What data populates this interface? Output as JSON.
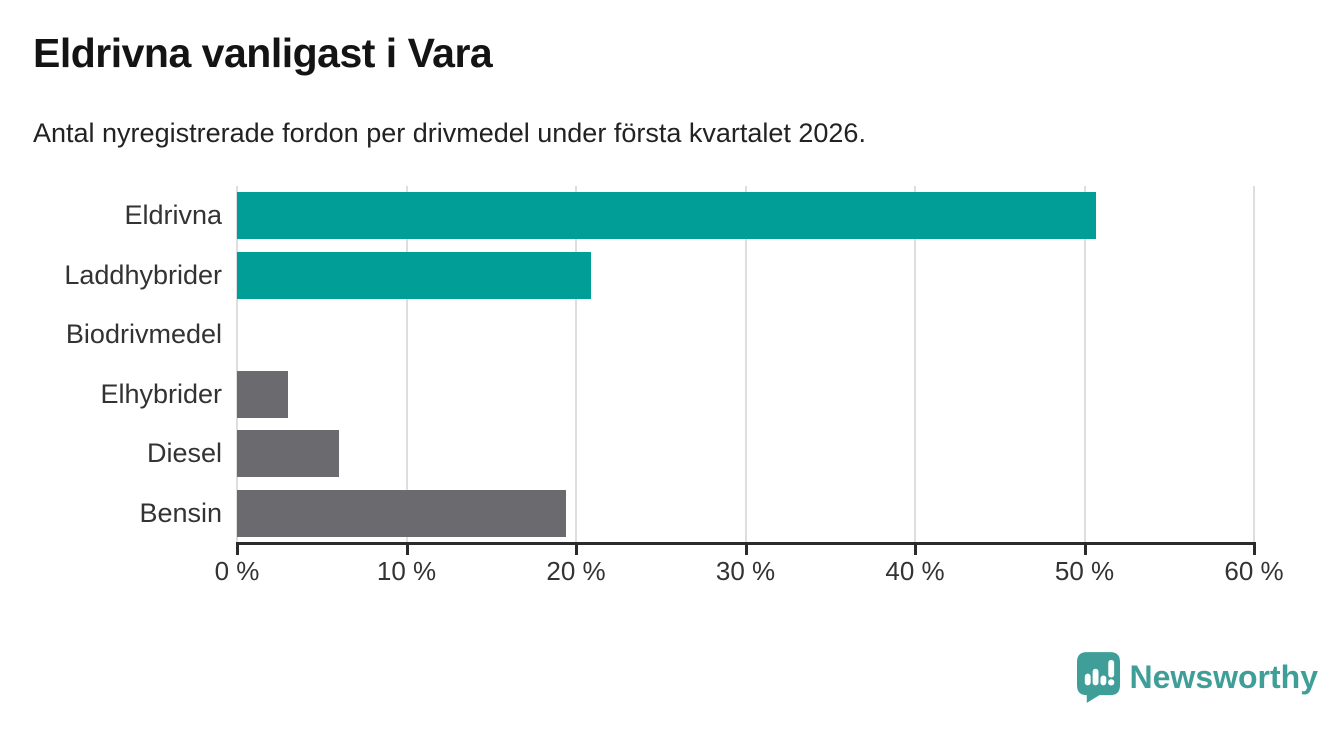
{
  "header": {
    "title": "Eldrivna vanligast i Vara",
    "subtitle": "Antal nyregistrerade fordon per drivmedel under första kvartalet 2026."
  },
  "chart_data": {
    "type": "bar",
    "orientation": "horizontal",
    "title": "Eldrivna vanligast i Vara",
    "subtitle": "Antal nyregistrerade fordon per drivmedel under första kvartalet 2026.",
    "categories": [
      "Eldrivna",
      "Laddhybrider",
      "Biodrivmedel",
      "Elhybrider",
      "Diesel",
      "Bensin"
    ],
    "values": [
      50.7,
      20.9,
      0,
      3,
      6,
      19.4
    ],
    "unit": "%",
    "xlim": [
      0,
      60
    ],
    "x_ticks": [
      0,
      10,
      20,
      30,
      40,
      50,
      60
    ],
    "x_tick_labels": [
      "0 %",
      "10 %",
      "20 %",
      "30 %",
      "40 %",
      "50 %",
      "60 %"
    ],
    "bar_colors": [
      "#009e96",
      "#009e96",
      "#6a6a6f",
      "#6a6a6f",
      "#6a6a6f",
      "#6a6a6f"
    ],
    "grid": true,
    "legend": "none",
    "colors": {
      "highlight": "#009e96",
      "muted": "#6a6a6f",
      "gridline": "#dedede",
      "axis": "#2b2b2b",
      "label_text": "#333333"
    }
  },
  "footer": {
    "brand": "Newsworthy",
    "brand_color": "#3f9f98"
  }
}
